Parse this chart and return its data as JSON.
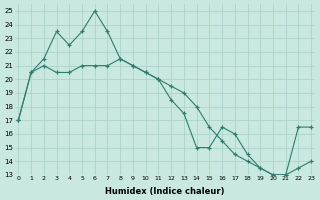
{
  "line1_x": [
    0,
    1,
    2,
    3,
    4,
    5,
    6,
    7,
    8,
    9,
    10,
    11,
    12,
    13,
    14,
    15,
    16,
    17,
    18,
    19,
    20,
    21,
    22,
    23
  ],
  "line1_y": [
    17,
    20.5,
    21.5,
    23.5,
    22.5,
    23.5,
    25,
    23.5,
    21.5,
    21.0,
    20.5,
    20.0,
    18.5,
    17.5,
    15.0,
    15.0,
    16.5,
    16.0,
    14.5,
    13.5,
    13.0,
    13.0,
    13.5,
    14.0
  ],
  "line2_x": [
    0,
    1,
    2,
    3,
    4,
    5,
    6,
    7,
    8,
    9,
    10,
    11,
    12,
    13,
    14,
    15,
    16,
    17,
    18,
    19,
    20,
    21,
    22,
    23
  ],
  "line2_y": [
    17,
    20.5,
    21.0,
    20.5,
    20.5,
    21.0,
    21.0,
    21.0,
    21.5,
    21.0,
    20.5,
    20.0,
    19.5,
    19.0,
    18.0,
    16.5,
    15.5,
    14.5,
    14.0,
    13.5,
    13.0,
    13.0,
    16.5,
    16.5
  ],
  "line_color": "#2e7d6e",
  "bg_color": "#c8e8e0",
  "grid_color": "#a8cfc8",
  "xlabel": "Humidex (Indice chaleur)",
  "ylabel_ticks": [
    13,
    14,
    15,
    16,
    17,
    18,
    19,
    20,
    21,
    22,
    23,
    24,
    25
  ],
  "xlabel_ticks": [
    0,
    1,
    2,
    3,
    4,
    5,
    6,
    7,
    8,
    9,
    10,
    11,
    12,
    13,
    14,
    15,
    16,
    17,
    18,
    19,
    20,
    21,
    22,
    23
  ],
  "ylim": [
    13,
    25.5
  ],
  "xlim_min": -0.3,
  "xlim_max": 23.3
}
